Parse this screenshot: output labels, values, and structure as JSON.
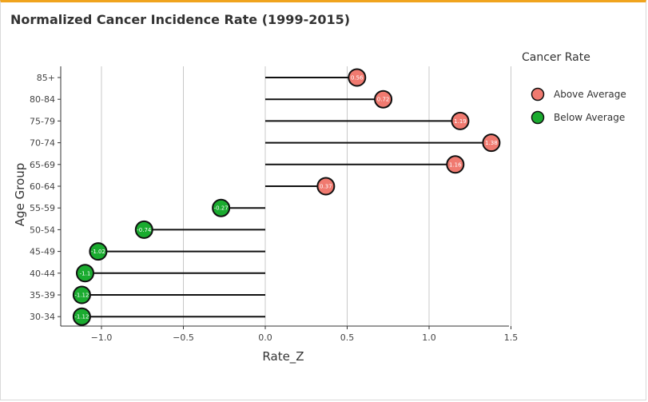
{
  "title": "Normalized Cancer Incidence Rate (1999-2015)",
  "colors": {
    "accent": "#f0a41e",
    "above": "#f07a70",
    "below": "#1aab2f"
  },
  "chart_data": {
    "type": "lollipop",
    "title": "Normalized Cancer Incidence Rate (1999-2015)",
    "xlabel": "Rate_Z",
    "ylabel": "Age Group",
    "xlim": [
      -1.25,
      1.5
    ],
    "x_ticks": [
      -1.0,
      -0.5,
      0.0,
      0.5,
      1.0,
      1.5
    ],
    "x_tick_labels": [
      "−1.0",
      "−0.5",
      "0.0",
      "0.5",
      "1.0",
      "1.5"
    ],
    "grid": "vertical",
    "legend": {
      "title": "Cancer Rate",
      "position": "right",
      "entries": [
        {
          "label": "Above Average",
          "color": "#f07a70"
        },
        {
          "label": "Below Average",
          "color": "#1aab2f"
        }
      ]
    },
    "points": [
      {
        "category": "85+",
        "value": 0.56,
        "label": "0.56",
        "group": "Above Average"
      },
      {
        "category": "80-84",
        "value": 0.72,
        "label": "0.72",
        "group": "Above Average"
      },
      {
        "category": "75-79",
        "value": 1.19,
        "label": "1.19",
        "group": "Above Average"
      },
      {
        "category": "70-74",
        "value": 1.38,
        "label": "1.38",
        "group": "Above Average"
      },
      {
        "category": "65-69",
        "value": 1.16,
        "label": "1.16",
        "group": "Above Average"
      },
      {
        "category": "60-64",
        "value": 0.37,
        "label": "0.37",
        "group": "Above Average"
      },
      {
        "category": "55-59",
        "value": -0.27,
        "label": "-0.27",
        "group": "Below Average"
      },
      {
        "category": "50-54",
        "value": -0.74,
        "label": "-0.74",
        "group": "Below Average"
      },
      {
        "category": "45-49",
        "value": -1.02,
        "label": "-1.02",
        "group": "Below Average"
      },
      {
        "category": "40-44",
        "value": -1.1,
        "label": "-1.1",
        "group": "Below Average"
      },
      {
        "category": "35-39",
        "value": -1.12,
        "label": "-1.12",
        "group": "Below Average"
      },
      {
        "category": "30-34",
        "value": -1.12,
        "label": "-1.12",
        "group": "Below Average"
      }
    ]
  }
}
